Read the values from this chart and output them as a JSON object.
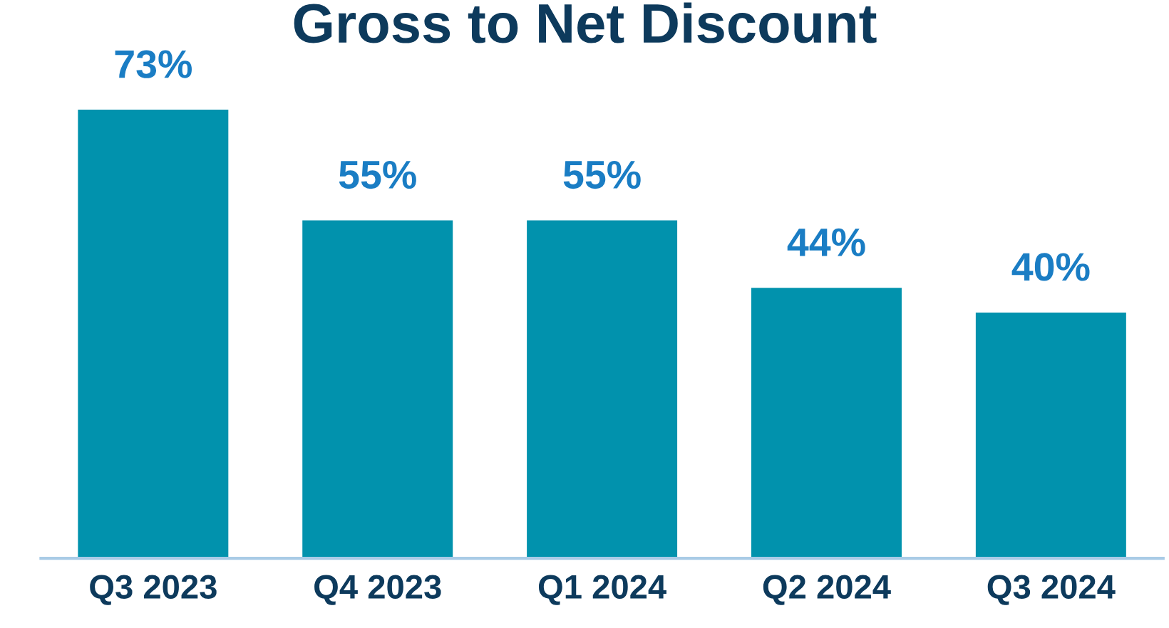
{
  "chart_data": {
    "type": "bar",
    "title": "Gross to Net Discount",
    "categories": [
      "Q3 2023",
      "Q4 2023",
      "Q1 2024",
      "Q2 2024",
      "Q3 2024"
    ],
    "values": [
      73,
      55,
      55,
      44,
      40
    ],
    "value_labels": [
      "73%",
      "55%",
      "55%",
      "44%",
      "40%"
    ],
    "color": "#0192ad",
    "grid": false,
    "legend": false
  }
}
